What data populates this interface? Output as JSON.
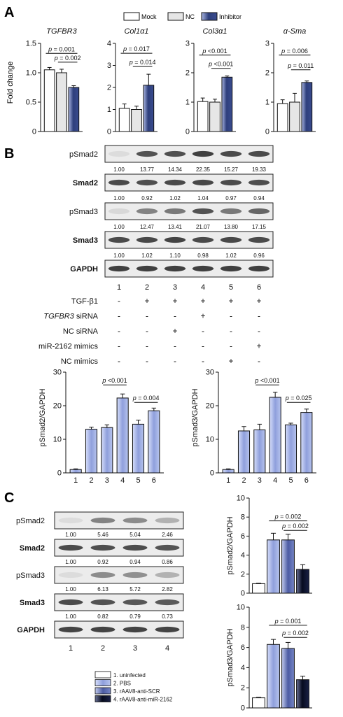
{
  "panels": {
    "A": {
      "letter": "A",
      "legend": [
        "Mock",
        "NC",
        "Inhibitor"
      ],
      "ylabel": "Fold change",
      "charts": [
        {
          "title": "TGFBR3",
          "ylim": [
            0,
            1.5
          ],
          "ticks": [
            "0",
            "0.5",
            "1.0",
            "1.5"
          ],
          "tick_values": [
            0,
            0.5,
            1.0,
            1.5
          ],
          "values": [
            1.05,
            1.0,
            0.75
          ],
          "errors": [
            0.04,
            0.06,
            0.03
          ],
          "annotations": [
            {
              "text": "p = 0.001",
              "from": 0,
              "to": 2,
              "level": 1.33
            },
            {
              "text": "p = 0.002",
              "from": 1,
              "to": 2,
              "level": 1.18
            }
          ]
        },
        {
          "title": "Col1α1",
          "ylim": [
            0,
            4
          ],
          "ticks": [
            "0",
            "1",
            "2",
            "3",
            "4"
          ],
          "tick_values": [
            0,
            1,
            2,
            3,
            4
          ],
          "values": [
            1.05,
            1.0,
            2.1
          ],
          "errors": [
            0.2,
            0.15,
            0.5
          ],
          "annotations": [
            {
              "text": "p = 0.017",
              "from": 0,
              "to": 2,
              "level": 3.55
            },
            {
              "text": "p = 0.014",
              "from": 1,
              "to": 2,
              "level": 2.95
            }
          ]
        },
        {
          "title": "Col3α1",
          "ylim": [
            0,
            3
          ],
          "ticks": [
            "0",
            "1",
            "2",
            "3"
          ],
          "tick_values": [
            0,
            1,
            2,
            3
          ],
          "values": [
            1.02,
            1.0,
            1.85
          ],
          "errors": [
            0.12,
            0.1,
            0.04
          ],
          "annotations": [
            {
              "text": "p <0.001",
              "from": 0,
              "to": 2,
              "level": 2.6
            },
            {
              "text": "p <0.001",
              "from": 1,
              "to": 2,
              "level": 2.15
            }
          ]
        },
        {
          "title": "α-Sma",
          "ylim": [
            0,
            3
          ],
          "ticks": [
            "0",
            "1",
            "2",
            "3"
          ],
          "tick_values": [
            0,
            1,
            2,
            3
          ],
          "values": [
            0.95,
            1.0,
            1.67
          ],
          "errors": [
            0.13,
            0.3,
            0.05
          ],
          "annotations": [
            {
              "text": "p = 0.006",
              "from": 0,
              "to": 2,
              "level": 2.6
            },
            {
              "text": "p = 0.011",
              "from": 1,
              "to": 2,
              "level": 2.1
            }
          ]
        }
      ]
    },
    "B": {
      "letter": "B",
      "blots": [
        {
          "label": "pSmad2",
          "bold": false,
          "values": [
            "1.00",
            "13.77",
            "14.34",
            "22.35",
            "15.27",
            "19.33"
          ],
          "intensity": [
            0.08,
            0.8,
            0.82,
            0.9,
            0.85,
            0.85
          ]
        },
        {
          "label": "Smad2",
          "bold": true,
          "values": [
            "1.00",
            "0.92",
            "1.02",
            "1.04",
            "0.97",
            "0.94"
          ],
          "intensity": [
            0.85,
            0.82,
            0.85,
            0.86,
            0.84,
            0.83
          ]
        },
        {
          "label": "pSmad3",
          "bold": false,
          "values": [
            "1.00",
            "12.47",
            "13.41",
            "21.07",
            "13.80",
            "17.15"
          ],
          "intensity": [
            0.1,
            0.55,
            0.6,
            0.8,
            0.6,
            0.7
          ]
        },
        {
          "label": "Smad3",
          "bold": true,
          "values": [
            "1.00",
            "1.02",
            "1.10",
            "0.98",
            "1.02",
            "0.96"
          ],
          "intensity": [
            0.85,
            0.86,
            0.88,
            0.85,
            0.86,
            0.85
          ]
        },
        {
          "label": "GAPDH",
          "bold": true,
          "values": [],
          "intensity": [
            0.9,
            0.9,
            0.9,
            0.9,
            0.9,
            0.9
          ]
        }
      ],
      "lanes": [
        "1",
        "2",
        "3",
        "4",
        "5",
        "6"
      ],
      "conditions": [
        {
          "label": "TGF-β1",
          "italic": false,
          "marks": [
            "-",
            "+",
            "+",
            "+",
            "+",
            "+"
          ]
        },
        {
          "label": "TGFBR3",
          "suffix": " siRNA",
          "italic": true,
          "marks": [
            "-",
            "-",
            "-",
            "+",
            "-",
            "-"
          ]
        },
        {
          "label": "NC siRNA",
          "italic": false,
          "marks": [
            "-",
            "-",
            "+",
            "-",
            "-",
            "-"
          ]
        },
        {
          "label": "miR-2162 mimics",
          "italic": false,
          "marks": [
            "-",
            "-",
            "-",
            "-",
            "-",
            "+"
          ]
        },
        {
          "label": "NC mimics",
          "italic": false,
          "marks": [
            "-",
            "-",
            "-",
            "-",
            "+",
            "-"
          ]
        }
      ],
      "charts": [
        {
          "ylabel": "pSmad2/GAPDH",
          "ylim": [
            0,
            30
          ],
          "ticks": [
            "0",
            "10",
            "20",
            "30"
          ],
          "tick_values": [
            0,
            10,
            20,
            30
          ],
          "categories": [
            "1",
            "2",
            "3",
            "4",
            "5",
            "6"
          ],
          "values": [
            1.0,
            13.0,
            13.5,
            22.3,
            14.5,
            18.5
          ],
          "errors": [
            0.2,
            0.6,
            0.8,
            1.2,
            1.2,
            0.8
          ],
          "annotations": [
            {
              "text": "p <0.001",
              "from": 2,
              "to": 3,
              "level": 26.2
            },
            {
              "text": "p = 0.004",
              "from": 4,
              "to": 5,
              "level": 21.0
            }
          ]
        },
        {
          "ylabel": "pSmad3/GAPDH",
          "ylim": [
            0,
            30
          ],
          "ticks": [
            "0",
            "10",
            "20",
            "30"
          ],
          "tick_values": [
            0,
            10,
            20,
            30
          ],
          "categories": [
            "1",
            "2",
            "3",
            "4",
            "5",
            "6"
          ],
          "values": [
            1.0,
            12.5,
            12.8,
            22.5,
            14.3,
            18.0
          ],
          "errors": [
            0.2,
            1.3,
            1.7,
            1.5,
            0.5,
            1.0
          ],
          "annotations": [
            {
              "text": "p <0.001",
              "from": 2,
              "to": 3,
              "level": 26.2
            },
            {
              "text": "p = 0.025",
              "from": 4,
              "to": 5,
              "level": 21.0
            }
          ]
        }
      ]
    },
    "C": {
      "letter": "C",
      "blots": [
        {
          "label": "pSmad2",
          "bold": false,
          "values": [
            "1.00",
            "5.46",
            "5.04",
            "2.46"
          ],
          "intensity": [
            0.08,
            0.55,
            0.5,
            0.3
          ]
        },
        {
          "label": "Smad2",
          "bold": true,
          "values": [
            "1.00",
            "0.92",
            "0.94",
            "0.86"
          ],
          "intensity": [
            0.85,
            0.82,
            0.83,
            0.8
          ]
        },
        {
          "label": "pSmad3",
          "bold": false,
          "values": [
            "1.00",
            "6.13",
            "5.72",
            "2.82"
          ],
          "intensity": [
            0.08,
            0.5,
            0.48,
            0.3
          ]
        },
        {
          "label": "Smad3",
          "bold": true,
          "values": [
            "1.00",
            "0.82",
            "0.79",
            "0.73"
          ],
          "intensity": [
            0.85,
            0.8,
            0.78,
            0.76
          ]
        },
        {
          "label": "GAPDH",
          "bold": true,
          "values": [],
          "intensity": [
            0.88,
            0.88,
            0.88,
            0.88
          ]
        }
      ],
      "lanes": [
        "1",
        "2",
        "3",
        "4"
      ],
      "legend": [
        "1. uninfected",
        "2. PBS",
        "3. rAAV8-anti-SCR",
        "4. rAAV8-anti-miR-2162"
      ],
      "charts": [
        {
          "ylabel": "pSmad2/GAPDH",
          "ylim": [
            0,
            10
          ],
          "ticks": [
            "0",
            "2",
            "4",
            "6",
            "8",
            "10"
          ],
          "tick_values": [
            0,
            2,
            4,
            6,
            8,
            10
          ],
          "values": [
            1.0,
            5.6,
            5.6,
            2.5
          ],
          "errors": [
            0.05,
            0.7,
            0.6,
            0.5
          ],
          "annotations": [
            {
              "text": "p = 0.002",
              "from": 1,
              "to": 3,
              "level": 7.6
            },
            {
              "text": "p = 0.002",
              "from": 2,
              "to": 3,
              "level": 6.6
            }
          ]
        },
        {
          "ylabel": "pSmad3/GAPDH",
          "ylim": [
            0,
            10
          ],
          "ticks": [
            "0",
            "2",
            "4",
            "6",
            "8",
            "10"
          ],
          "tick_values": [
            0,
            2,
            4,
            6,
            8,
            10
          ],
          "values": [
            1.0,
            6.3,
            5.9,
            2.8
          ],
          "errors": [
            0.05,
            0.5,
            0.6,
            0.35
          ],
          "annotations": [
            {
              "text": "p = 0.001",
              "from": 1,
              "to": 3,
              "level": 8.2
            },
            {
              "text": "p = 0.002",
              "from": 2,
              "to": 3,
              "level": 7.0
            }
          ]
        }
      ]
    }
  },
  "colors": {
    "axis": "#111111",
    "mock": "#ffffff",
    "nc": "#e6e6e6",
    "inhibitor_dark": "#2e3f7c",
    "inhibitor_light": "#aab6e2",
    "blue_light": "#b7c4ee",
    "blue_mid": "#6f7fc2",
    "blue_dark": "#0d1433"
  }
}
